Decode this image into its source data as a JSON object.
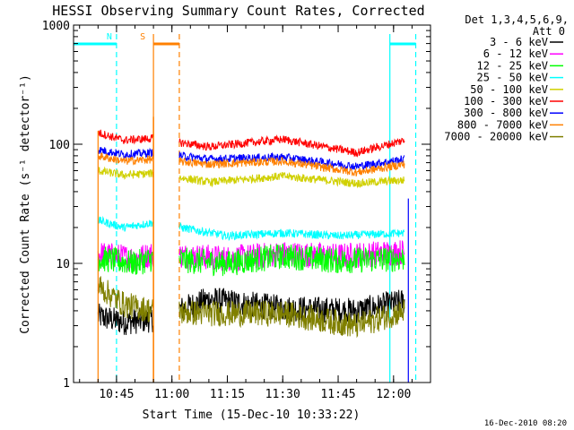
{
  "chart_data": {
    "type": "line",
    "title": "HESSI Observing Summary Count Rates, Corrected",
    "xlabel": "Start Time (15-Dec-10 10:33:22)",
    "ylabel": "Corrected Count Rate (s⁻¹ detector⁻¹)",
    "yscale": "log",
    "ylim": [
      1,
      1000
    ],
    "xlim": [
      "10:33:22",
      "12:10:00"
    ],
    "x_ticks": [
      "10:45",
      "11:00",
      "11:15",
      "11:30",
      "11:45",
      "12:00"
    ],
    "y_ticks": [
      "1",
      "10",
      "100",
      "1000"
    ],
    "grid": false,
    "legend": {
      "position": "right",
      "header": [
        "Det 1,3,4,5,6,9,",
        "Att 0"
      ]
    },
    "segments": [
      [
        "10:40",
        "10:55"
      ],
      [
        "11:02",
        "12:03"
      ]
    ],
    "series": [
      {
        "name": "3 - 6 keV",
        "color": "#000000",
        "values_by_time": [
          [
            "10:40",
            3.6
          ],
          [
            "10:47",
            3.2
          ],
          [
            "10:55",
            3.4
          ],
          [
            "11:10",
            5.0
          ],
          [
            "11:30",
            4.2
          ],
          [
            "11:50",
            4.0
          ],
          [
            "12:03",
            4.8
          ]
        ]
      },
      {
        "name": "6 - 12 keV",
        "color": "#ff00ff",
        "values_by_time": [
          [
            "10:40",
            12
          ],
          [
            "10:50",
            11
          ],
          [
            "10:55",
            12
          ],
          [
            "11:15",
            11
          ],
          [
            "11:30",
            12
          ],
          [
            "11:45",
            11.5
          ],
          [
            "12:03",
            12.5
          ]
        ]
      },
      {
        "name": "12 - 25 keV",
        "color": "#00ff00",
        "values_by_time": [
          [
            "10:40",
            11
          ],
          [
            "10:50",
            10
          ],
          [
            "10:55",
            11
          ],
          [
            "11:15",
            10
          ],
          [
            "11:30",
            11.5
          ],
          [
            "11:45",
            10.5
          ],
          [
            "12:03",
            11
          ]
        ]
      },
      {
        "name": "25 - 50 keV",
        "color": "#00ffff",
        "values_by_time": [
          [
            "10:40",
            23
          ],
          [
            "10:47",
            20
          ],
          [
            "10:55",
            22
          ],
          [
            "11:15",
            17
          ],
          [
            "11:30",
            18
          ],
          [
            "11:45",
            17
          ],
          [
            "12:03",
            18
          ]
        ]
      },
      {
        "name": "50 - 100 keV",
        "color": "#d0d000",
        "values_by_time": [
          [
            "10:40",
            60
          ],
          [
            "10:47",
            55
          ],
          [
            "10:55",
            57
          ],
          [
            "11:10",
            48
          ],
          [
            "11:30",
            54
          ],
          [
            "11:50",
            47
          ],
          [
            "12:03",
            50
          ]
        ]
      },
      {
        "name": "100 - 300 keV",
        "color": "#ff0000",
        "values_by_time": [
          [
            "10:40",
            125
          ],
          [
            "10:47",
            108
          ],
          [
            "10:55",
            112
          ],
          [
            "11:10",
            95
          ],
          [
            "11:30",
            110
          ],
          [
            "11:50",
            85
          ],
          [
            "12:03",
            108
          ]
        ]
      },
      {
        "name": "300 - 800 keV",
        "color": "#0000ff",
        "values_by_time": [
          [
            "10:40",
            90
          ],
          [
            "10:47",
            82
          ],
          [
            "10:55",
            85
          ],
          [
            "11:10",
            75
          ],
          [
            "11:30",
            78
          ],
          [
            "11:50",
            65
          ],
          [
            "12:03",
            75
          ]
        ]
      },
      {
        "name": "800 - 7000 keV",
        "color": "#ff8000",
        "values_by_time": [
          [
            "10:40",
            80
          ],
          [
            "10:47",
            72
          ],
          [
            "10:55",
            75
          ],
          [
            "11:10",
            68
          ],
          [
            "11:30",
            72
          ],
          [
            "11:50",
            58
          ],
          [
            "12:03",
            68
          ]
        ]
      },
      {
        "name": "7000 - 20000 keV",
        "color": "#808000",
        "values_by_time": [
          [
            "10:40",
            6.5
          ],
          [
            "10:47",
            4.5
          ],
          [
            "10:55",
            4.0
          ],
          [
            "11:10",
            3.8
          ],
          [
            "11:30",
            3.8
          ],
          [
            "11:50",
            3.0
          ],
          [
            "12:03",
            4.0
          ]
        ]
      }
    ],
    "annotations": [
      {
        "label": "N",
        "color": "#00ffff",
        "times": [
          "10:33:22",
          "10:45"
        ]
      },
      {
        "label": "N",
        "color": "#00ffff",
        "times": [
          "11:59",
          "12:06"
        ]
      },
      {
        "label": "S",
        "color": "#ff8000",
        "times": [
          "10:55",
          "11:02"
        ]
      }
    ],
    "footer": "16-Dec-2010 08:20"
  }
}
